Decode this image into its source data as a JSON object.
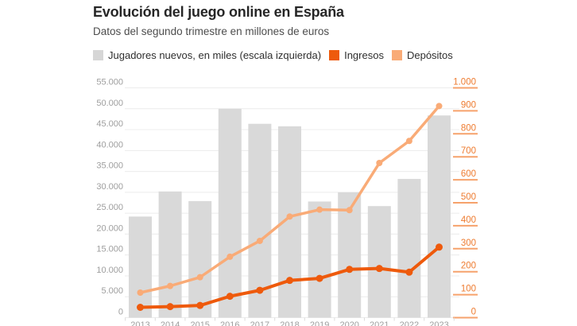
{
  "header": {
    "title": "Evolución del juego online en España",
    "subtitle": "Datos del segundo trimestre en millones de euros"
  },
  "legend": [
    {
      "label": "Jugadores nuevos, en miles (escala izquierda)",
      "color": "#d6d6d6"
    },
    {
      "label": "Ingresos",
      "color": "#ee5a0c"
    },
    {
      "label": "Depósitos",
      "color": "#f9ab77"
    }
  ],
  "chart_data": {
    "type": "bar+line combo",
    "categories": [
      "2013",
      "2014",
      "2015",
      "2016",
      "2017",
      "2018",
      "2019",
      "2020",
      "2021",
      "2022",
      "2023"
    ],
    "series": [
      {
        "name": "Jugadores nuevos, en miles (escala izquierda)",
        "type": "bar",
        "axis": "left",
        "color": "#d9d9d9",
        "values": [
          24200,
          30200,
          27900,
          50000,
          46400,
          45800,
          27800,
          30000,
          26700,
          33200,
          48400
        ]
      },
      {
        "name": "Ingresos",
        "type": "line",
        "axis": "right",
        "color": "#ee5a0c",
        "values": [
          45,
          48,
          53,
          93,
          119,
          162,
          171,
          210,
          214,
          198,
          307
        ]
      },
      {
        "name": "Depósitos",
        "type": "line",
        "axis": "right",
        "color": "#f9ab77",
        "values": [
          109,
          138,
          176,
          265,
          334,
          440,
          470,
          468,
          673,
          769,
          921
        ]
      }
    ],
    "left_axis": {
      "min": 0,
      "max": 55000,
      "step": 5000,
      "labels": [
        "0",
        "5.000",
        "10.000",
        "15.000",
        "20.000",
        "25.000",
        "30.000",
        "35.000",
        "40.000",
        "45.000",
        "50.000",
        "55.000"
      ]
    },
    "right_axis": {
      "min": 0,
      "max": 1000,
      "step": 100,
      "labels": [
        "0",
        "100",
        "200",
        "300",
        "400",
        "500",
        "600",
        "700",
        "800",
        "900",
        "1.000"
      ]
    },
    "grid": "horizontal-on",
    "legend_position": "top",
    "colors": {
      "gridline": "#ececec",
      "bar": "#d9d9d9",
      "ingresos_line": "#ee5a0c",
      "depositos_line": "#f9ab77",
      "right_axis_label": "#ee7c31",
      "right_axis_tick": "#f6a26c",
      "left_axis_label": "#9e9e9e",
      "year_label": "#9e9e9e"
    }
  }
}
